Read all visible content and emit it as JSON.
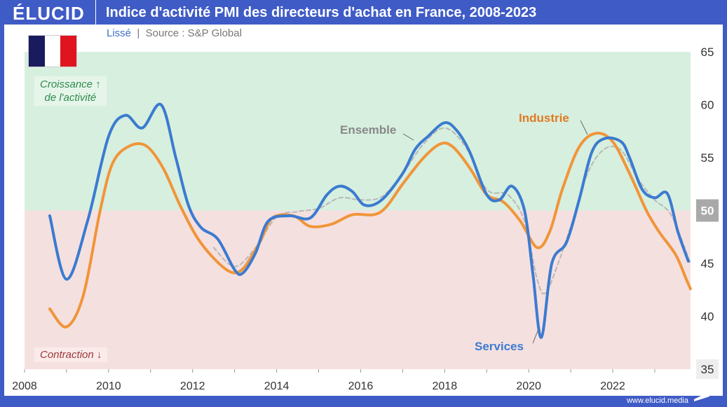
{
  "header": {
    "logo": "ÉLUCID",
    "title": "Indice d'activité PMI des directeurs d'achat en France, 2008-2023"
  },
  "subtitle": {
    "mode": "Lissé",
    "separator": "|",
    "source": "Source : S&P Global"
  },
  "zones": {
    "growth": "Croissance",
    "growth2": "de l'activité",
    "contraction": "Contraction",
    "growth_arrow": "↑",
    "contraction_arrow": "↓"
  },
  "footer": "www.elucid.media",
  "colors": {
    "services": "#3b7bd0",
    "industrie": "#f0953a",
    "ensemble": "#b8b8b8",
    "growth_bg": "#d7efdf",
    "contraction_bg": "#f5e0e0",
    "header": "#3f5bc6"
  },
  "chart_data": {
    "type": "line",
    "title": "Indice d'activité PMI des directeurs d'achat en France, 2008-2023",
    "xlim": [
      2008,
      2023.85
    ],
    "ylim": [
      35,
      65
    ],
    "x_ticks": [
      "2008",
      "2010",
      "2012",
      "2014",
      "2016",
      "2018",
      "2020",
      "2022"
    ],
    "y_ticks": [
      "35",
      "40",
      "45",
      "50",
      "55",
      "60",
      "65"
    ],
    "threshold": 50,
    "series": [
      {
        "name": "Services",
        "points": [
          [
            2008.6,
            49.5
          ],
          [
            2009.0,
            43.5
          ],
          [
            2009.5,
            49
          ],
          [
            2010.0,
            57
          ],
          [
            2010.4,
            59
          ],
          [
            2010.8,
            57.8
          ],
          [
            2011.25,
            60
          ],
          [
            2011.6,
            55
          ],
          [
            2011.9,
            50.5
          ],
          [
            2012.2,
            48.4
          ],
          [
            2012.6,
            47.3
          ],
          [
            2013.0,
            44.4
          ],
          [
            2013.2,
            44.1
          ],
          [
            2013.5,
            46
          ],
          [
            2013.8,
            49
          ],
          [
            2014.3,
            49.5
          ],
          [
            2014.8,
            49.3
          ],
          [
            2015.2,
            51.5
          ],
          [
            2015.5,
            52.3
          ],
          [
            2015.8,
            51.8
          ],
          [
            2016.1,
            50.5
          ],
          [
            2016.5,
            51
          ],
          [
            2017.0,
            53.5
          ],
          [
            2017.3,
            55.8
          ],
          [
            2017.6,
            57
          ],
          [
            2018.0,
            58.3
          ],
          [
            2018.3,
            57.5
          ],
          [
            2018.6,
            55.5
          ],
          [
            2019.0,
            51.5
          ],
          [
            2019.3,
            51
          ],
          [
            2019.6,
            52.3
          ],
          [
            2019.9,
            50
          ],
          [
            2020.1,
            44
          ],
          [
            2020.3,
            38
          ],
          [
            2020.55,
            45
          ],
          [
            2020.9,
            47
          ],
          [
            2021.2,
            51
          ],
          [
            2021.5,
            55.5
          ],
          [
            2021.8,
            56.8
          ],
          [
            2022.2,
            56.5
          ],
          [
            2022.4,
            55
          ],
          [
            2022.7,
            52
          ],
          [
            2023.0,
            51.2
          ],
          [
            2023.3,
            51.6
          ],
          [
            2023.55,
            48
          ],
          [
            2023.8,
            45.2
          ]
        ]
      },
      {
        "name": "Industrie",
        "points": [
          [
            2008.6,
            40.7
          ],
          [
            2009.0,
            39
          ],
          [
            2009.4,
            42
          ],
          [
            2009.8,
            50
          ],
          [
            2010.1,
            54.5
          ],
          [
            2010.5,
            56.1
          ],
          [
            2010.9,
            56.1
          ],
          [
            2011.3,
            54
          ],
          [
            2011.7,
            50.5
          ],
          [
            2012.1,
            47.5
          ],
          [
            2012.5,
            45.5
          ],
          [
            2012.9,
            44.2
          ],
          [
            2013.2,
            44.5
          ],
          [
            2013.6,
            47
          ],
          [
            2013.9,
            49.3
          ],
          [
            2014.4,
            49.5
          ],
          [
            2014.8,
            48.5
          ],
          [
            2015.3,
            48.7
          ],
          [
            2015.8,
            49.6
          ],
          [
            2016.3,
            49.6
          ],
          [
            2016.6,
            50.3
          ],
          [
            2017.0,
            52.5
          ],
          [
            2017.5,
            55
          ],
          [
            2017.9,
            56.3
          ],
          [
            2018.2,
            56
          ],
          [
            2018.6,
            54
          ],
          [
            2019.0,
            51.5
          ],
          [
            2019.4,
            50.8
          ],
          [
            2019.8,
            49
          ],
          [
            2020.2,
            46.5
          ],
          [
            2020.5,
            48
          ],
          [
            2020.8,
            52
          ],
          [
            2021.2,
            56
          ],
          [
            2021.6,
            57.3
          ],
          [
            2022.0,
            56.5
          ],
          [
            2022.4,
            53.5
          ],
          [
            2022.8,
            50
          ],
          [
            2023.1,
            48
          ],
          [
            2023.5,
            45.8
          ],
          [
            2023.75,
            43.5
          ],
          [
            2023.85,
            42.6
          ]
        ]
      },
      {
        "name": "Ensemble",
        "points": [
          [
            2012.5,
            46.5
          ],
          [
            2013.0,
            44.7
          ],
          [
            2013.5,
            46.5
          ],
          [
            2014.0,
            49.4
          ],
          [
            2014.5,
            49.9
          ],
          [
            2015.0,
            50.2
          ],
          [
            2015.5,
            51.2
          ],
          [
            2016.0,
            51
          ],
          [
            2016.5,
            51.3
          ],
          [
            2017.0,
            53.5
          ],
          [
            2017.5,
            56.3
          ],
          [
            2018.0,
            57.8
          ],
          [
            2018.5,
            56
          ],
          [
            2019.0,
            52
          ],
          [
            2019.5,
            51.5
          ],
          [
            2019.9,
            49
          ],
          [
            2020.2,
            43.5
          ],
          [
            2020.4,
            42.2
          ],
          [
            2020.7,
            45
          ],
          [
            2021.0,
            48.5
          ],
          [
            2021.4,
            53.5
          ],
          [
            2021.8,
            55.8
          ],
          [
            2022.2,
            55.7
          ],
          [
            2022.6,
            53
          ],
          [
            2023.0,
            51
          ],
          [
            2023.4,
            49.5
          ],
          [
            2023.85,
            45
          ]
        ]
      }
    ]
  }
}
